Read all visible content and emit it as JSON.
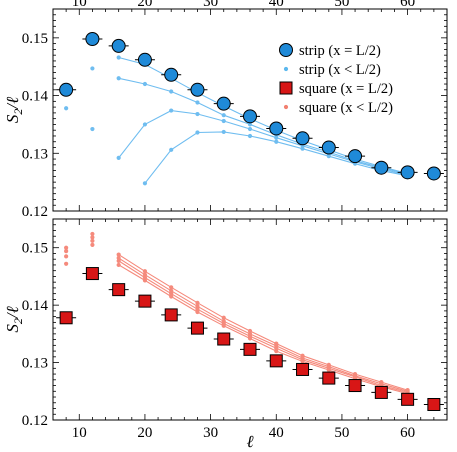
{
  "figure": {
    "top_axis_ticks": [
      "10",
      "20",
      "30",
      "40",
      "50",
      "60"
    ],
    "xlabel": "ℓ"
  },
  "chart_data": [
    {
      "type": "scatter",
      "panel": "top",
      "ylabel_main": "S",
      "ylabel_sub": "2",
      "ylabel_tail": "/ℓ",
      "xlim": [
        6,
        66
      ],
      "ylim": [
        0.12,
        0.155
      ],
      "x_ticks": [
        10,
        20,
        30,
        40,
        50,
        60
      ],
      "y_ticks": [
        0.12,
        0.13,
        0.14,
        0.15
      ],
      "y_tick_labels": [
        "0.12",
        "0.13",
        "0.14",
        "0.15"
      ],
      "legend": {
        "placement": "top-right",
        "entries": [
          {
            "label": "strip (x = L/2)",
            "marker": "circle",
            "color": "#1f8ad8"
          },
          {
            "label": "strip (x < L/2)",
            "marker": "dot",
            "color": "#5cb8ee"
          },
          {
            "label": "square (x = L/2)",
            "marker": "square",
            "color": "#d81616"
          },
          {
            "label": "square (x < L/2)",
            "marker": "dot",
            "color": "#f28070"
          }
        ]
      },
      "main_series": {
        "name": "strip (x = L/2)",
        "color": "#1f8ad8",
        "marker": "circle",
        "x": [
          8,
          12,
          16,
          20,
          24,
          28,
          32,
          36,
          40,
          44,
          48,
          52,
          56,
          60,
          64
        ],
        "y": [
          0.141,
          0.1498,
          0.1486,
          0.1462,
          0.1436,
          0.141,
          0.1386,
          0.1364,
          0.1343,
          0.1326,
          0.131,
          0.1295,
          0.1275,
          0.1267,
          0.1265
        ]
      },
      "sub_series": [
        {
          "x": [
            8,
            12,
            16,
            20,
            24,
            28,
            32,
            36,
            40,
            44,
            48,
            52,
            56,
            60
          ],
          "y": [
            0.1378,
            0.1447,
            0.1466,
            0.1454,
            0.143,
            0.1405,
            0.1382,
            0.136,
            0.134,
            0.1322,
            0.1306,
            0.129,
            0.1277,
            0.1265
          ]
        },
        {
          "x": [
            12,
            16,
            20,
            24,
            28,
            32,
            36,
            40,
            44,
            48,
            52,
            56,
            60
          ],
          "y": [
            0.1342,
            0.143,
            0.142,
            0.1407,
            0.1388,
            0.1366,
            0.135,
            0.1332,
            0.1316,
            0.1302,
            0.1287,
            0.1275,
            0.1264
          ]
        },
        {
          "x": [
            16,
            20,
            24,
            28,
            32,
            36,
            40,
            44,
            48,
            52,
            56,
            60
          ],
          "y": [
            0.1292,
            0.135,
            0.1374,
            0.1368,
            0.1356,
            0.1342,
            0.1327,
            0.1313,
            0.1299,
            0.1285,
            0.1273,
            0.1262
          ]
        },
        {
          "x": [
            20,
            24,
            28,
            32,
            36,
            40,
            44,
            48,
            52,
            56,
            60
          ],
          "y": [
            0.1248,
            0.1306,
            0.1336,
            0.1337,
            0.133,
            0.132,
            0.1308,
            0.1295,
            0.1282,
            0.127,
            0.1261
          ]
        }
      ]
    },
    {
      "type": "scatter",
      "panel": "bottom",
      "ylabel_main": "S",
      "ylabel_sub": "2",
      "ylabel_tail": "/ℓ",
      "xlim": [
        6,
        66
      ],
      "ylim": [
        0.12,
        0.155
      ],
      "x_ticks": [
        10,
        20,
        30,
        40,
        50,
        60
      ],
      "x_tick_labels": [
        "10",
        "20",
        "30",
        "40",
        "50",
        "60"
      ],
      "y_ticks": [
        0.12,
        0.13,
        0.14,
        0.15
      ],
      "y_tick_labels": [
        "0.12",
        "0.13",
        "0.14",
        "0.15"
      ],
      "main_series": {
        "name": "square (x = L/2)",
        "color": "#d81616",
        "marker": "square",
        "x": [
          8,
          12,
          16,
          20,
          24,
          28,
          32,
          36,
          40,
          44,
          48,
          52,
          56,
          60,
          64
        ],
        "y": [
          0.1378,
          0.1455,
          0.1427,
          0.1407,
          0.1383,
          0.136,
          0.1341,
          0.1323,
          0.1303,
          0.1288,
          0.1273,
          0.126,
          0.1248,
          0.1236,
          0.1227
        ]
      },
      "sub_series": [
        {
          "x": [
            8,
            12,
            16,
            20,
            24,
            28,
            32,
            36,
            40,
            44,
            48,
            52,
            56,
            60
          ],
          "y": [
            0.1472,
            0.1505,
            0.147,
            0.1443,
            0.1415,
            0.1388,
            0.1364,
            0.1342,
            0.132,
            0.1302,
            0.1287,
            0.1272,
            0.1258,
            0.1246
          ]
        },
        {
          "x": [
            8,
            12,
            16,
            20,
            24,
            28,
            32,
            36,
            40,
            44,
            48,
            52,
            56,
            60
          ],
          "y": [
            0.1485,
            0.1512,
            0.1477,
            0.1448,
            0.142,
            0.1393,
            0.1368,
            0.1346,
            0.1325,
            0.1305,
            0.129,
            0.1275,
            0.126,
            0.1248
          ]
        },
        {
          "x": [
            8,
            12,
            16,
            20,
            24,
            28,
            32,
            36,
            40,
            44,
            48,
            52,
            56,
            60
          ],
          "y": [
            0.1494,
            0.1518,
            0.1482,
            0.1453,
            0.1425,
            0.1398,
            0.1372,
            0.135,
            0.1329,
            0.1308,
            0.1293,
            0.1277,
            0.1263,
            0.125
          ]
        },
        {
          "x": [
            8,
            12,
            16,
            20,
            24,
            28,
            32,
            36,
            40,
            44,
            48,
            52,
            56,
            60
          ],
          "y": [
            0.15,
            0.1524,
            0.1488,
            0.1459,
            0.1431,
            0.1404,
            0.1378,
            0.1355,
            0.1333,
            0.1312,
            0.1296,
            0.128,
            0.1266,
            0.1252
          ]
        }
      ]
    }
  ]
}
